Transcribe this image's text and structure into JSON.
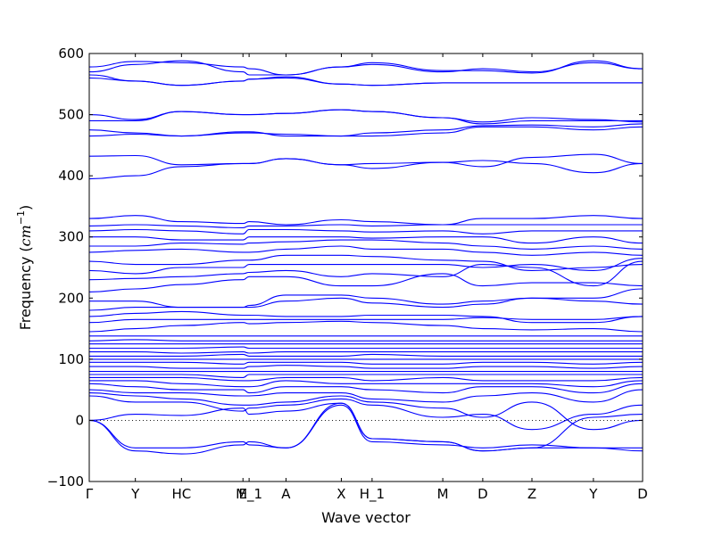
{
  "chart_data": {
    "type": "line",
    "title": "",
    "xlabel": "Wave vector",
    "ylabel": "Frequency (cm^{-1})",
    "ylabel_parts": {
      "text": "Frequency ",
      "unit_open": "(",
      "unit_base": "cm",
      "unit_exp": "−1",
      "unit_close": ")"
    },
    "ylim": [
      -100,
      600
    ],
    "yticks": [
      "−100",
      "0",
      "100",
      "200",
      "300",
      "400",
      "500",
      "600"
    ],
    "ytick_values": [
      -100,
      0,
      100,
      200,
      300,
      400,
      500,
      600
    ],
    "xlim": [
      0,
      9
    ],
    "k_points": [
      {
        "label": "Γ",
        "x": 0.0
      },
      {
        "label": "Y",
        "x": 0.75
      },
      {
        "label": "HC",
        "x": 1.5
      },
      {
        "label": "E",
        "x": 2.5
      },
      {
        "label": "M_1",
        "x": 2.6
      },
      {
        "label": "A",
        "x": 3.2
      },
      {
        "label": "X",
        "x": 4.1
      },
      {
        "label": "H_1",
        "x": 4.6
      },
      {
        "label": "M",
        "x": 5.75
      },
      {
        "label": "D",
        "x": 6.4
      },
      {
        "label": "Z",
        "x": 7.2
      },
      {
        "label": "Y",
        "x": 8.2
      },
      {
        "label": "D",
        "x": 9.0
      }
    ],
    "zero_line": {
      "y": 0,
      "style": "dotted"
    },
    "series_color": "#0000ff",
    "grid": false,
    "x_sample": [
      0,
      0.75,
      1.5,
      2.5,
      2.6,
      3.2,
      4.1,
      4.6,
      5.75,
      6.4,
      7.2,
      8.2,
      9.0
    ],
    "series": [
      {
        "values": [
          0,
          -45,
          -45,
          -35,
          -40,
          -45,
          25,
          -35,
          -40,
          -45,
          -40,
          -45,
          -50
        ]
      },
      {
        "values": [
          0,
          -50,
          -55,
          -40,
          -35,
          -45,
          28,
          -30,
          -35,
          -50,
          -45,
          -45,
          -45
        ]
      },
      {
        "values": [
          0,
          10,
          8,
          20,
          10,
          15,
          28,
          -30,
          -35,
          -50,
          -45,
          5,
          10
        ]
      },
      {
        "values": [
          40,
          30,
          30,
          15,
          20,
          25,
          35,
          25,
          5,
          10,
          -15,
          10,
          25
        ]
      },
      {
        "values": [
          45,
          40,
          35,
          25,
          25,
          30,
          40,
          30,
          20,
          5,
          30,
          -15,
          0
        ]
      },
      {
        "values": [
          50,
          45,
          45,
          40,
          40,
          45,
          45,
          35,
          30,
          40,
          45,
          30,
          50
        ]
      },
      {
        "values": [
          60,
          55,
          50,
          50,
          45,
          55,
          55,
          50,
          45,
          55,
          55,
          45,
          60
        ]
      },
      {
        "values": [
          65,
          65,
          60,
          55,
          55,
          65,
          60,
          60,
          60,
          60,
          60,
          55,
          65
        ]
      },
      {
        "values": [
          70,
          70,
          70,
          65,
          65,
          70,
          70,
          65,
          70,
          65,
          65,
          65,
          70
        ]
      },
      {
        "values": [
          75,
          75,
          75,
          70,
          75,
          75,
          75,
          75,
          75,
          75,
          75,
          75,
          75
        ]
      },
      {
        "values": [
          80,
          80,
          80,
          80,
          80,
          80,
          80,
          80,
          80,
          80,
          80,
          80,
          80
        ]
      },
      {
        "values": [
          88,
          88,
          85,
          85,
          88,
          90,
          88,
          85,
          85,
          88,
          88,
          85,
          88
        ]
      },
      {
        "values": [
          95,
          95,
          95,
          92,
          95,
          95,
          95,
          92,
          92,
          95,
          95,
          92,
          95
        ]
      },
      {
        "values": [
          100,
          100,
          100,
          100,
          100,
          100,
          100,
          100,
          100,
          100,
          100,
          100,
          100
        ]
      },
      {
        "values": [
          105,
          105,
          105,
          108,
          105,
          105,
          105,
          108,
          105,
          105,
          105,
          105,
          105
        ]
      },
      {
        "values": [
          112,
          112,
          110,
          112,
          110,
          112,
          112,
          112,
          112,
          112,
          112,
          112,
          112
        ]
      },
      {
        "values": [
          118,
          118,
          118,
          120,
          118,
          118,
          118,
          118,
          118,
          118,
          118,
          118,
          118
        ]
      },
      {
        "values": [
          125,
          125,
          125,
          125,
          125,
          125,
          125,
          125,
          125,
          125,
          125,
          125,
          125
        ]
      },
      {
        "values": [
          130,
          132,
          130,
          130,
          130,
          130,
          130,
          130,
          130,
          130,
          130,
          130,
          130
        ]
      },
      {
        "values": [
          138,
          138,
          138,
          138,
          138,
          138,
          138,
          138,
          138,
          138,
          138,
          138,
          138
        ]
      },
      {
        "values": [
          145,
          150,
          155,
          160,
          158,
          160,
          162,
          160,
          155,
          150,
          148,
          150,
          145
        ]
      },
      {
        "values": [
          160,
          165,
          165,
          165,
          165,
          165,
          165,
          165,
          165,
          168,
          165,
          165,
          170
        ]
      },
      {
        "values": [
          170,
          175,
          178,
          172,
          172,
          170,
          170,
          172,
          172,
          170,
          160,
          160,
          170
        ]
      },
      {
        "values": [
          180,
          185,
          185,
          185,
          185,
          195,
          200,
          192,
          185,
          190,
          200,
          195,
          190
        ]
      },
      {
        "values": [
          195,
          195,
          185,
          185,
          188,
          205,
          205,
          200,
          190,
          195,
          200,
          200,
          215
        ]
      },
      {
        "values": [
          210,
          215,
          222,
          230,
          235,
          235,
          220,
          220,
          240,
          220,
          225,
          225,
          220
        ]
      },
      {
        "values": [
          230,
          232,
          235,
          240,
          242,
          245,
          235,
          240,
          235,
          255,
          250,
          220,
          260
        ]
      },
      {
        "values": [
          245,
          240,
          250,
          250,
          255,
          255,
          255,
          255,
          255,
          250,
          255,
          245,
          265
        ]
      },
      {
        "values": [
          260,
          255,
          255,
          262,
          262,
          270,
          270,
          268,
          262,
          260,
          245,
          250,
          255
        ]
      },
      {
        "values": [
          275,
          278,
          280,
          275,
          275,
          280,
          285,
          280,
          280,
          275,
          270,
          275,
          270
        ]
      },
      {
        "values": [
          285,
          285,
          290,
          288,
          290,
          292,
          295,
          295,
          290,
          285,
          280,
          285,
          280
        ]
      },
      {
        "values": [
          300,
          300,
          295,
          295,
          300,
          300,
          300,
          298,
          300,
          300,
          290,
          300,
          290
        ]
      },
      {
        "values": [
          310,
          312,
          310,
          305,
          312,
          312,
          310,
          308,
          310,
          305,
          310,
          310,
          310
        ]
      },
      {
        "values": [
          318,
          320,
          318,
          315,
          318,
          318,
          320,
          318,
          320,
          320,
          320,
          320,
          320
        ]
      },
      {
        "values": [
          330,
          335,
          325,
          322,
          325,
          320,
          328,
          325,
          320,
          330,
          330,
          335,
          330
        ]
      },
      {
        "values": [
          395,
          400,
          415,
          420,
          420,
          428,
          418,
          412,
          422,
          425,
          420,
          405,
          420
        ]
      },
      {
        "values": [
          432,
          433,
          418,
          420,
          420,
          428,
          418,
          420,
          422,
          415,
          430,
          435,
          420
        ]
      },
      {
        "values": [
          465,
          468,
          465,
          470,
          470,
          468,
          465,
          465,
          470,
          480,
          480,
          475,
          480
        ]
      },
      {
        "values": [
          475,
          470,
          465,
          472,
          472,
          465,
          465,
          470,
          475,
          482,
          483,
          480,
          485
        ]
      },
      {
        "values": [
          490,
          490,
          505,
          500,
          500,
          502,
          508,
          505,
          495,
          485,
          490,
          490,
          490
        ]
      },
      {
        "values": [
          500,
          492,
          505,
          500,
          500,
          502,
          508,
          505,
          495,
          488,
          495,
          492,
          488
        ]
      },
      {
        "values": [
          560,
          555,
          548,
          555,
          558,
          560,
          550,
          548,
          552,
          552,
          552,
          552,
          552
        ]
      },
      {
        "values": [
          565,
          555,
          548,
          555,
          558,
          562,
          550,
          548,
          552,
          552,
          552,
          552,
          552
        ]
      },
      {
        "values": [
          570,
          582,
          588,
          570,
          565,
          565,
          578,
          582,
          570,
          575,
          570,
          585,
          575
        ]
      },
      {
        "values": [
          578,
          587,
          585,
          578,
          575,
          565,
          578,
          585,
          572,
          572,
          568,
          588,
          575
        ]
      }
    ]
  }
}
